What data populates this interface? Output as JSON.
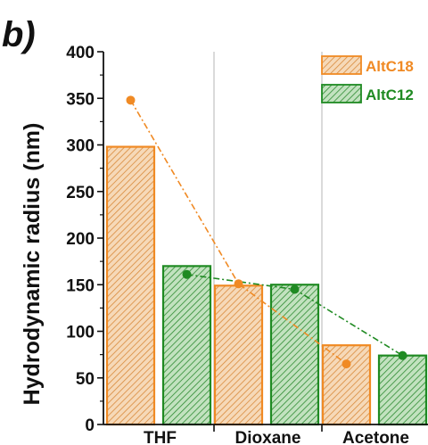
{
  "panel_label": "b)",
  "chart_data": {
    "type": "bar",
    "categories": [
      "THF",
      "Dioxane",
      "Acetone"
    ],
    "series": [
      {
        "name": "AltC18",
        "values": [
          298,
          149,
          85
        ],
        "points": [
          348,
          151,
          65
        ],
        "color": "#f08a24",
        "hatch_bg": "#f6d9b8"
      },
      {
        "name": "AltC12",
        "values": [
          170,
          150,
          74
        ],
        "points": [
          161,
          145,
          74
        ],
        "color": "#1f8a22",
        "hatch_bg": "#c2e2bf"
      }
    ],
    "xlabel": "",
    "ylabel": "Hydrodynamic radius (nm)",
    "ylim": [
      0,
      400
    ],
    "yticks": [
      0,
      50,
      100,
      150,
      200,
      250,
      300,
      350,
      400
    ],
    "grid": false,
    "legend": "top-right"
  }
}
